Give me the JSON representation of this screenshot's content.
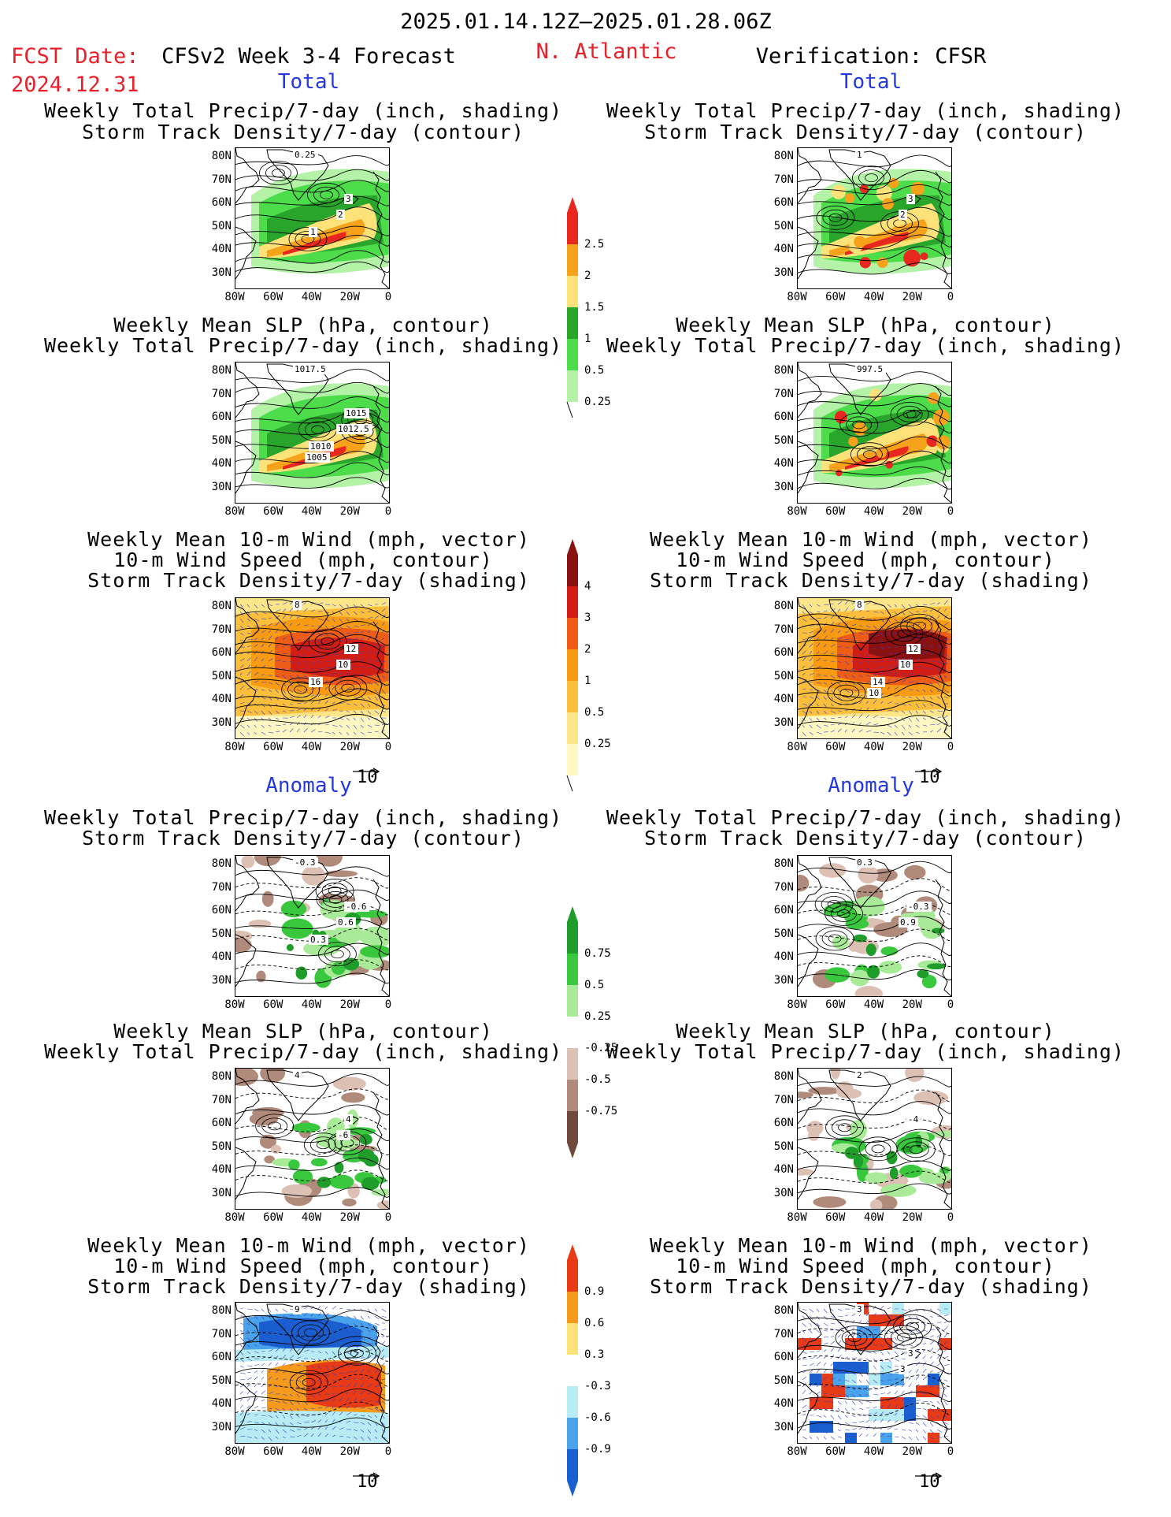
{
  "header": {
    "period": "2025.01.14.12Z–2025.01.28.06Z",
    "fcst_label": "FCST Date:",
    "fcst_date": "2024.12.31",
    "model_title": "CFSv2 Week 3-4 Forecast",
    "region": "N. Atlantic",
    "verification": "Verification: CFSR"
  },
  "sections": {
    "total": "Total",
    "anomaly": "Anomaly"
  },
  "panel_titles": {
    "precip_storm": [
      "Weekly Total Precip/7-day (inch, shading)",
      "Storm Track Density/7-day (contour)"
    ],
    "slp_precip": [
      "Weekly Mean SLP (hPa, contour)",
      "Weekly Total Precip/7-day (inch, shading)"
    ],
    "wind_storm": [
      "Weekly Mean 10-m Wind (mph, vector)",
      "10-m Wind Speed (mph, contour)",
      "Storm Track Density/7-day (shading)"
    ]
  },
  "axes": {
    "lat": [
      "80N",
      "70N",
      "60N",
      "50N",
      "40N",
      "30N"
    ],
    "lon": [
      "80W",
      "60W",
      "40W",
      "20W",
      "0"
    ]
  },
  "vector_ref": "10",
  "colorbars": {
    "precip_total": {
      "labels": [
        "2.5",
        "2",
        "1.5",
        "1",
        "0.5",
        "0.25"
      ],
      "colors": [
        "#e8281e",
        "#f7a21b",
        "#fde27a",
        "#2aa52c",
        "#4ddc4a",
        "#b4f2a8"
      ]
    },
    "storm_total": {
      "labels": [
        "4",
        "3",
        "2",
        "1",
        "0.5",
        "0.25"
      ],
      "colors": [
        "#8b1010",
        "#d11d14",
        "#ee5c16",
        "#f89a12",
        "#fbbf3c",
        "#fde68a",
        "#fff7c2"
      ]
    },
    "precip_anom": {
      "labels": [
        "0.75",
        "0.5",
        "0.25",
        "-0.25",
        "-0.5",
        "-0.75"
      ],
      "colors": [
        "#1f9d2b",
        "#39c83d",
        "#a9ea98",
        "#ffffff",
        "#dcc0b4",
        "#b08a7a",
        "#6f4a3c"
      ]
    },
    "storm_anom": {
      "labels": [
        "0.9",
        "0.6",
        "0.3",
        "-0.3",
        "-0.6",
        "-0.9"
      ],
      "colors": [
        "#e83a14",
        "#f69a1b",
        "#fde27a",
        "#ffffff",
        "#b7ecf5",
        "#4aa2ea",
        "#1a5fd0"
      ]
    }
  },
  "map_labels": {
    "t_ps_l": [
      "0.25",
      "3",
      "2",
      "1"
    ],
    "t_ps_r": [
      "1",
      "3",
      "2"
    ],
    "t_slp_l": [
      "1017.5",
      "1015",
      "1012.5",
      "1010",
      "1005"
    ],
    "t_slp_r": [
      "997.5"
    ],
    "t_ws_l": [
      "8",
      "12",
      "10",
      "16"
    ],
    "t_ws_r": [
      "8",
      "12",
      "10",
      "14",
      "10"
    ],
    "a_ps_l": [
      "-0.3",
      "-0.6",
      "0.6",
      "0.3"
    ],
    "a_ps_r": [
      "0.3",
      "-0.3",
      "0.9"
    ],
    "a_slp_l": [
      "4",
      "4",
      "-6"
    ],
    "a_slp_r": [
      "2",
      "-4"
    ],
    "a_ws_l": [
      "9"
    ],
    "a_ws_r": [
      "3",
      "3",
      "3"
    ]
  }
}
